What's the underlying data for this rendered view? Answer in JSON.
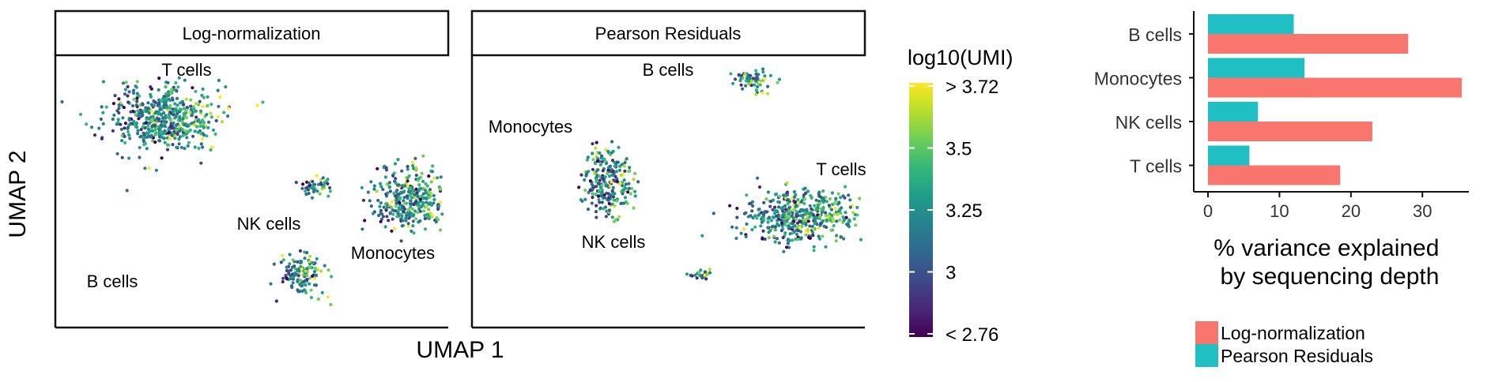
{
  "chart_data": [
    {
      "type": "scatter",
      "panel": "Log-normalization",
      "xlabel": "UMAP 1",
      "ylabel": "UMAP 2",
      "color_by": "log10(UMI)",
      "clusters": [
        {
          "label": "T cells",
          "center": [
            -3.2,
            3.0
          ],
          "spread": [
            2.3,
            1.4
          ]
        },
        {
          "label": "NK cells",
          "center": [
            2.3,
            0.2
          ],
          "spread": [
            0.6,
            0.5
          ]
        },
        {
          "label": "Monocytes",
          "center": [
            5.6,
            -0.3
          ],
          "spread": [
            1.5,
            1.4
          ]
        },
        {
          "label": "B cells",
          "center": [
            1.8,
            -3.4
          ],
          "spread": [
            0.9,
            0.9
          ]
        }
      ]
    },
    {
      "type": "scatter",
      "panel": "Pearson Residuals",
      "xlabel": "UMAP 1",
      "ylabel": "UMAP 2",
      "color_by": "log10(UMI)",
      "clusters": [
        {
          "label": "B cells",
          "center": [
            3.0,
            4.5
          ],
          "spread": [
            0.8,
            0.5
          ]
        },
        {
          "label": "Monocytes",
          "center": [
            -2.2,
            0.4
          ],
          "spread": [
            1.0,
            1.5
          ]
        },
        {
          "label": "T cells",
          "center": [
            4.8,
            -1.0
          ],
          "spread": [
            2.4,
            1.2
          ]
        },
        {
          "label": "NK cells",
          "center": [
            1.2,
            -3.4
          ],
          "spread": [
            0.5,
            0.3
          ]
        }
      ]
    },
    {
      "type": "bar",
      "orientation": "horizontal",
      "categories": [
        "B cells",
        "Monocytes",
        "NK cells",
        "T cells"
      ],
      "series": [
        {
          "name": "Pearson Residuals",
          "values": [
            12,
            13.5,
            7,
            5.8
          ],
          "color": "#1fbfc3"
        },
        {
          "name": "Log-normalization",
          "values": [
            28,
            35.5,
            23,
            18.5
          ],
          "color": "#f8766d"
        }
      ],
      "xlabel": "% variance explained\nby sequencing depth",
      "xticks": [
        0,
        10,
        20,
        30
      ],
      "xlim": [
        0,
        36.5
      ]
    }
  ],
  "colorbar": {
    "title": "log10(UMI)",
    "ticks": [
      "> 3.72",
      "3.5",
      "3.25",
      "3",
      "< 2.76"
    ],
    "palette": [
      "#fde725",
      "#b5de2b",
      "#6ece58",
      "#35b779",
      "#1f9e89",
      "#26828e",
      "#31688e",
      "#3e4989",
      "#482878",
      "#440154"
    ]
  },
  "legend": {
    "items": [
      {
        "label": "Log-normalization",
        "color": "#f8766d"
      },
      {
        "label": "Pearson Residuals",
        "color": "#1fbfc3"
      }
    ]
  }
}
